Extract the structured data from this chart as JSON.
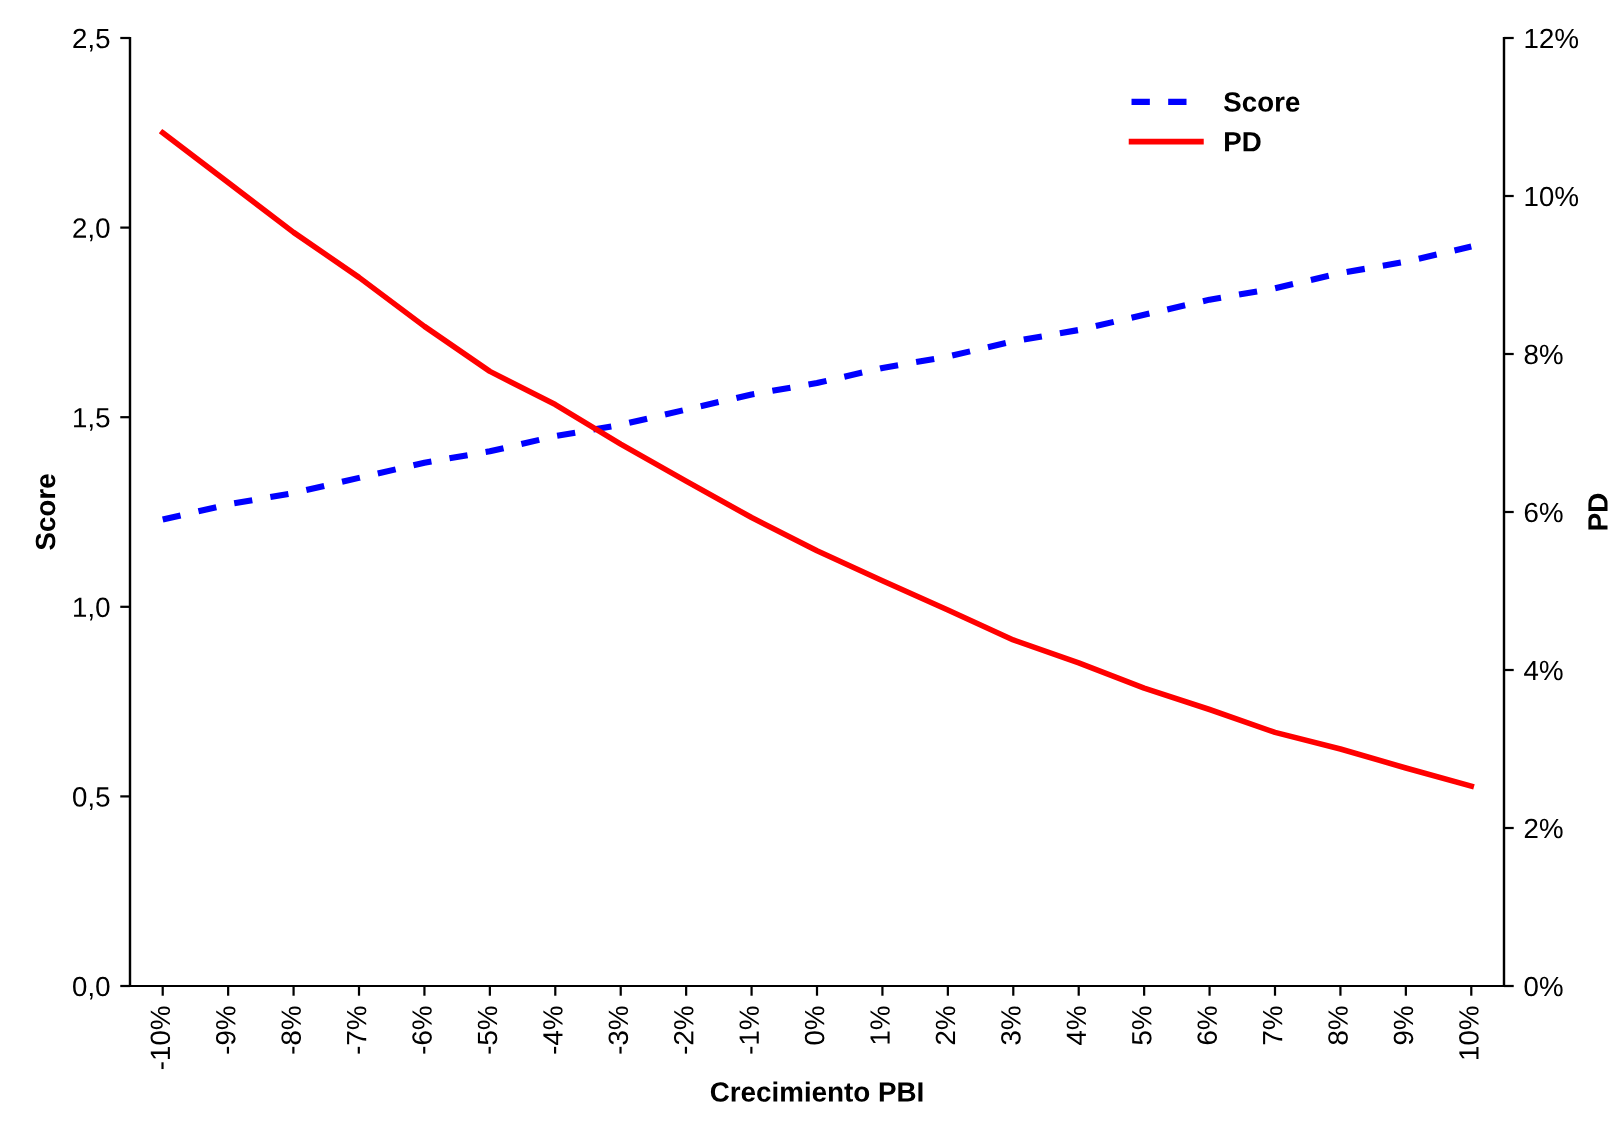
{
  "chart_data": {
    "type": "line",
    "xlabel": "Crecimiento PBI",
    "ylabel": "Score",
    "y2label": "PD",
    "categories": [
      "-10%",
      "-9%",
      "-8%",
      "-7%",
      "-6%",
      "-5%",
      "-4%",
      "-3%",
      "-2%",
      "-1%",
      "0%",
      "1%",
      "2%",
      "3%",
      "4%",
      "5%",
      "6%",
      "7%",
      "8%",
      "9%",
      "10%"
    ],
    "series": [
      {
        "name": "Score",
        "color": "#0000ff",
        "line_style": "dashed",
        "values": [
          1.23,
          1.27,
          1.3,
          1.34,
          1.38,
          1.41,
          1.45,
          1.48,
          1.52,
          1.56,
          1.59,
          1.63,
          1.66,
          1.7,
          1.73,
          1.77,
          1.81,
          1.84,
          1.88,
          1.91,
          1.95
        ]
      },
      {
        "name": "PD",
        "color": "#ff0000",
        "line_style": "solid",
        "axis": "y2",
        "values": [
          10.8,
          10.17,
          9.54,
          8.97,
          8.35,
          7.78,
          7.36,
          6.86,
          6.39,
          5.93,
          5.51,
          5.13,
          4.76,
          4.38,
          4.09,
          3.77,
          3.5,
          3.21,
          3.0,
          2.76,
          2.53
        ]
      }
    ],
    "ylim": [
      0,
      2.5
    ],
    "yticks": [
      {
        "value": 0,
        "label": "0,0"
      },
      {
        "value": 0.5,
        "label": "0,5"
      },
      {
        "value": 1,
        "label": "1,0"
      },
      {
        "value": 1.5,
        "label": "1,5"
      },
      {
        "value": 2,
        "label": "2,0"
      },
      {
        "value": 2.5,
        "label": "2,5"
      }
    ],
    "y2lim": [
      0,
      12
    ],
    "y2ticks": [
      {
        "value": 0,
        "label": "0%"
      },
      {
        "value": 2,
        "label": "2%"
      },
      {
        "value": 4,
        "label": "4%"
      },
      {
        "value": 6,
        "label": "6%"
      },
      {
        "value": 8,
        "label": "8%"
      },
      {
        "value": 10,
        "label": "10%"
      },
      {
        "value": 12,
        "label": "12%"
      }
    ],
    "grid": false,
    "legend": "top right",
    "marker": "none"
  }
}
